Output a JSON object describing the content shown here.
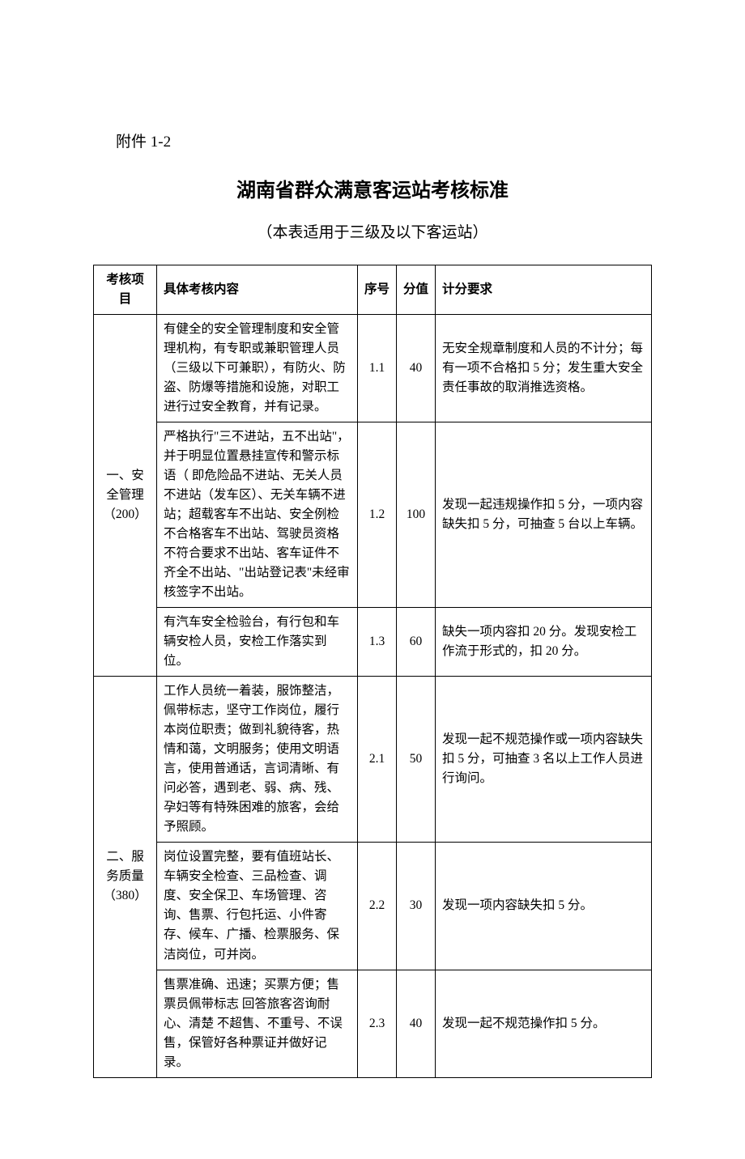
{
  "attachment_label": "附件 1-2",
  "title": "湖南省群众满意客运站考核标准",
  "subtitle": "（本表适用于三级及以下客运站）",
  "headers": {
    "category": "考核项目",
    "content": "具体考核内容",
    "index": "序号",
    "score": "分值",
    "requirement": "计分要求"
  },
  "rows": [
    {
      "category": "一、安全管理（200）",
      "category_rowspan": 3,
      "content": "有健全的安全管理制度和安全管理机构，有专职或兼职管理人员（三级以下可兼职），有防火、防盗、防爆等措施和设施，对职工进行过安全教育，并有记录。",
      "index": "1.1",
      "score": "40",
      "requirement": "无安全规章制度和人员的不计分；每有一项不合格扣 5 分；发生重大安全责任事故的取消推选资格。"
    },
    {
      "content": "严格执行\"三不进站，五不出站\"，并于明显位置悬挂宣传和警示标语（ 即危险品不进站、无关人员不进站（发车区）、无关车辆不进站；超载客车不出站、安全例检不合格客车不出站、驾驶员资格不符合要求不出站、客车证件不齐全不出站、\"出站登记表\"未经审核签字不出站。",
      "index": "1.2",
      "score": "100",
      "requirement": "发现一起违规操作扣 5 分，一项内容缺失扣 5 分，可抽查 5 台以上车辆。"
    },
    {
      "content": "有汽车安全检验台，有行包和车辆安检人员，安检工作落实到位。",
      "index": "1.3",
      "score": "60",
      "requirement": "缺失一项内容扣 20 分。发现安检工作流于形式的，扣 20 分。"
    },
    {
      "category": "二、服务质量（380）",
      "category_rowspan": 3,
      "content": "工作人员统一着装，服饰整洁，佩带标志，坚守工作岗位，履行本岗位职责；做到礼貌待客，热情和蔼，文明服务；使用文明语言，使用普通话，言词清晰、有问必答，遇到老、弱、病、残、孕妇等有特殊困难的旅客，会给予照顾。",
      "index": "2.1",
      "score": "50",
      "requirement": "发现一起不规范操作或一项内容缺失扣 5 分，可抽查 3 名以上工作人员进行询问。"
    },
    {
      "content": "岗位设置完整，要有值班站长、车辆安全检查、三品检查、调度、安全保卫、车场管理、咨询、售票、行包托运、小件寄存、候车、广播、检票服务、保洁岗位，可并岗。",
      "index": "2.2",
      "score": "30",
      "requirement": "发现一项内容缺失扣 5 分。"
    },
    {
      "content": "售票准确、迅速；买票方便；售票员佩带标志 回答旅客咨询耐心、清楚 不超售、不重号、不误售，保管好各种票证并做好记录。",
      "index": "2.3",
      "score": "40",
      "requirement": "发现一起不规范操作扣 5 分。"
    }
  ]
}
